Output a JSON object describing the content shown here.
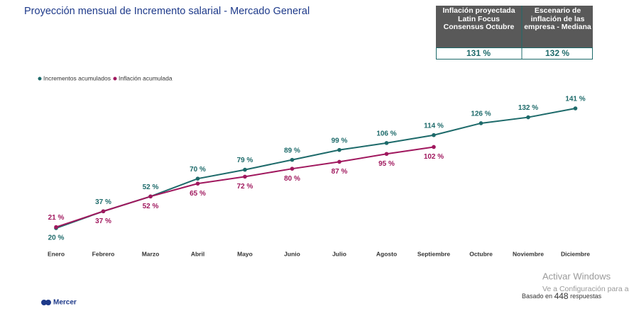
{
  "chart_data": {
    "type": "line",
    "title": "Proyección mensual de Incremento salarial - Mercado General",
    "categories": [
      "Enero",
      "Febrero",
      "Marzo",
      "Abril",
      "Mayo",
      "Junio",
      "Julio",
      "Agosto",
      "Septiembre",
      "Octubre",
      "Noviembre",
      "Diciembre"
    ],
    "series": [
      {
        "name": "Incrementos acumulados",
        "color": "#1d6a6a",
        "values": [
          20,
          37,
          52,
          70,
          79,
          89,
          99,
          106,
          114,
          126,
          132,
          141
        ],
        "value_labels": [
          "20 %",
          "37 %",
          "52 %",
          "70 %",
          "79 %",
          "89 %",
          "99 %",
          "106 %",
          "114 %",
          "126 %",
          "132 %",
          "141 %"
        ]
      },
      {
        "name": "Inflación acumulada",
        "color": "#a0185e",
        "values": [
          21,
          37,
          52,
          65,
          72,
          80,
          87,
          95,
          102,
          null,
          null,
          null
        ],
        "value_labels": [
          "21 %",
          "37 %",
          "52 %",
          "65 %",
          "72 %",
          "80 %",
          "87 %",
          "95 %",
          "102 %",
          null,
          null,
          null
        ]
      }
    ],
    "legend": "top-left"
  },
  "table": {
    "header": [
      "Inflación proyectada Latin Focus Consensus Octubre",
      "Escenario de inflación de las empresa - Mediana"
    ],
    "rows": [
      [
        "131 %",
        "132 %"
      ]
    ]
  },
  "footer": {
    "logo": "Mercer",
    "based_prefix": "Basado en",
    "based_count": "448",
    "based_suffix": "respuestas",
    "watermark_title": "Activar Windows",
    "watermark_sub": "Ve a Configuración para act"
  }
}
